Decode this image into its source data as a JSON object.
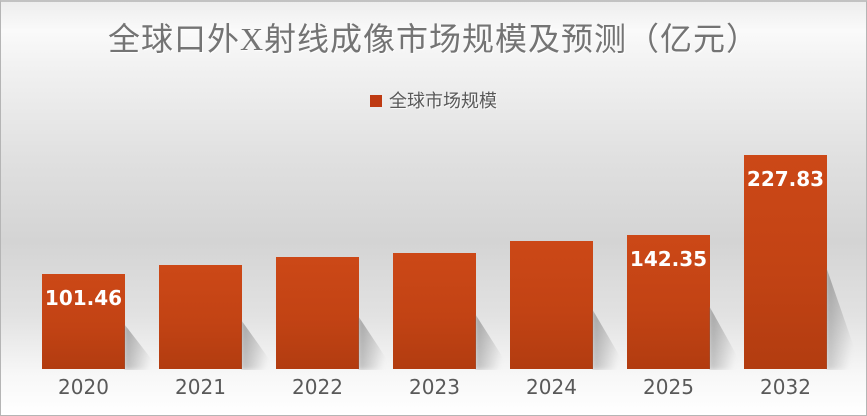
{
  "chart_data": {
    "type": "bar",
    "title": "全球口外X射线成像市场规模及预测（亿元）",
    "legend": {
      "position": "top-center",
      "entries": [
        "全球市场规模"
      ]
    },
    "series_name": "全球市场规模",
    "categories": [
      "2020",
      "2021",
      "2022",
      "2023",
      "2024",
      "2025",
      "2032"
    ],
    "values": [
      101.46,
      111.2,
      119.1,
      124.0,
      136.1,
      142.35,
      227.83
    ],
    "value_labels": [
      "101.46",
      "",
      "",
      "",
      "",
      "142.35",
      "227.83"
    ],
    "estimated_values": [
      false,
      true,
      true,
      true,
      true,
      false,
      false
    ],
    "xlabel": "",
    "ylabel": "",
    "ylim": [
      0,
      240
    ],
    "grid": false,
    "y_axis_visible": false,
    "x_axis_visible": true
  },
  "colors": {
    "bar_gradient_top": "#cc4817",
    "bar_gradient_bottom": "#b23c10",
    "legend_swatch": "#be3a12",
    "title_text": "#747474",
    "axis_text": "#595959",
    "value_label_text": "#ffffff",
    "background_mid_gray": "#d4d4d4",
    "background_edge": "#ffffff",
    "frame_border": "#b5b5b5",
    "shadow": "#6e6e6e"
  }
}
